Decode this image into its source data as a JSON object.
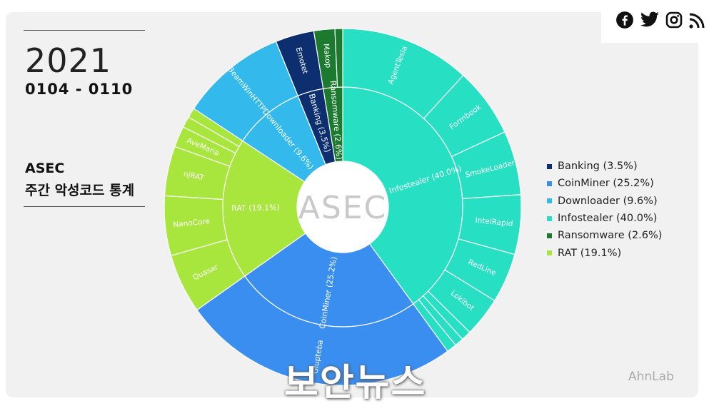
{
  "header": {
    "year": "2021",
    "date_range": "0104 - 0110",
    "title_line1": "ASEC",
    "title_line2": "주간 악성코드 통계"
  },
  "brand": {
    "center_logo": "ASEC",
    "footer_logo": "AhnLab",
    "watermark": "보안뉴스"
  },
  "social_icons": [
    "facebook-icon",
    "twitter-icon",
    "instagram-icon",
    "rss-icon"
  ],
  "chart_data": {
    "type": "sunburst",
    "title": "",
    "categories": [
      {
        "name": "Infostealer",
        "label": "Infostealer (40.0%)",
        "value": 40.0,
        "color": "#27dfc2",
        "children": [
          {
            "name": "AgentTesla",
            "value": 11.8
          },
          {
            "name": "Formbook",
            "value": 6.3
          },
          {
            "name": "SmokeLoader",
            "value": 5.8
          },
          {
            "name": "IntelRapid",
            "value": 5.4
          },
          {
            "name": "RedLine",
            "value": 4.5
          },
          {
            "name": "Lokibot",
            "value": 3.6
          },
          {
            "name": "",
            "value": 0.9
          },
          {
            "name": "",
            "value": 0.8
          },
          {
            "name": "",
            "value": 0.9
          }
        ]
      },
      {
        "name": "CoinMiner",
        "label": "CoinMiner (25.2%)",
        "value": 25.2,
        "color": "#3a8ef0",
        "children": [
          {
            "name": "Glupteba",
            "value": 25.2
          }
        ]
      },
      {
        "name": "RAT",
        "label": "RAT (19.1%)",
        "value": 19.1,
        "color": "#a8e63d",
        "children": [
          {
            "name": "Quasar",
            "value": 5.4
          },
          {
            "name": "NanoCore",
            "value": 5.4
          },
          {
            "name": "njRAT",
            "value": 4.5
          },
          {
            "name": "AveMaria",
            "value": 1.9
          },
          {
            "name": "",
            "value": 1.0
          },
          {
            "name": "",
            "value": 0.9
          }
        ]
      },
      {
        "name": "Downloader",
        "label": "Downloader (9.6%)",
        "value": 9.6,
        "color": "#33b9ec",
        "children": [
          {
            "name": "BeamWinHTTP",
            "value": 9.6
          }
        ]
      },
      {
        "name": "Banking",
        "label": "Banking (3.5%)",
        "value": 3.5,
        "color": "#0d2f70",
        "children": [
          {
            "name": "Emotet",
            "value": 3.5
          }
        ]
      },
      {
        "name": "Ransomware",
        "label": "Ransomware (2.6%)",
        "value": 2.6,
        "color": "#1b7a2e",
        "children": [
          {
            "name": "Makop",
            "value": 1.9
          },
          {
            "name": "",
            "value": 0.7
          }
        ]
      }
    ],
    "legend": {
      "placement": "right",
      "items": [
        {
          "label": "Banking (3.5%)",
          "color": "#0d2f70"
        },
        {
          "label": "CoinMiner (25.2%)",
          "color": "#3a8ef0"
        },
        {
          "label": "Downloader (9.6%)",
          "color": "#33b9ec"
        },
        {
          "label": "Infostealer (40.0%)",
          "color": "#27dfc2"
        },
        {
          "label": "Ransomware (2.6%)",
          "color": "#1b7a2e"
        },
        {
          "label": "RAT (19.1%)",
          "color": "#a8e63d"
        }
      ]
    }
  }
}
